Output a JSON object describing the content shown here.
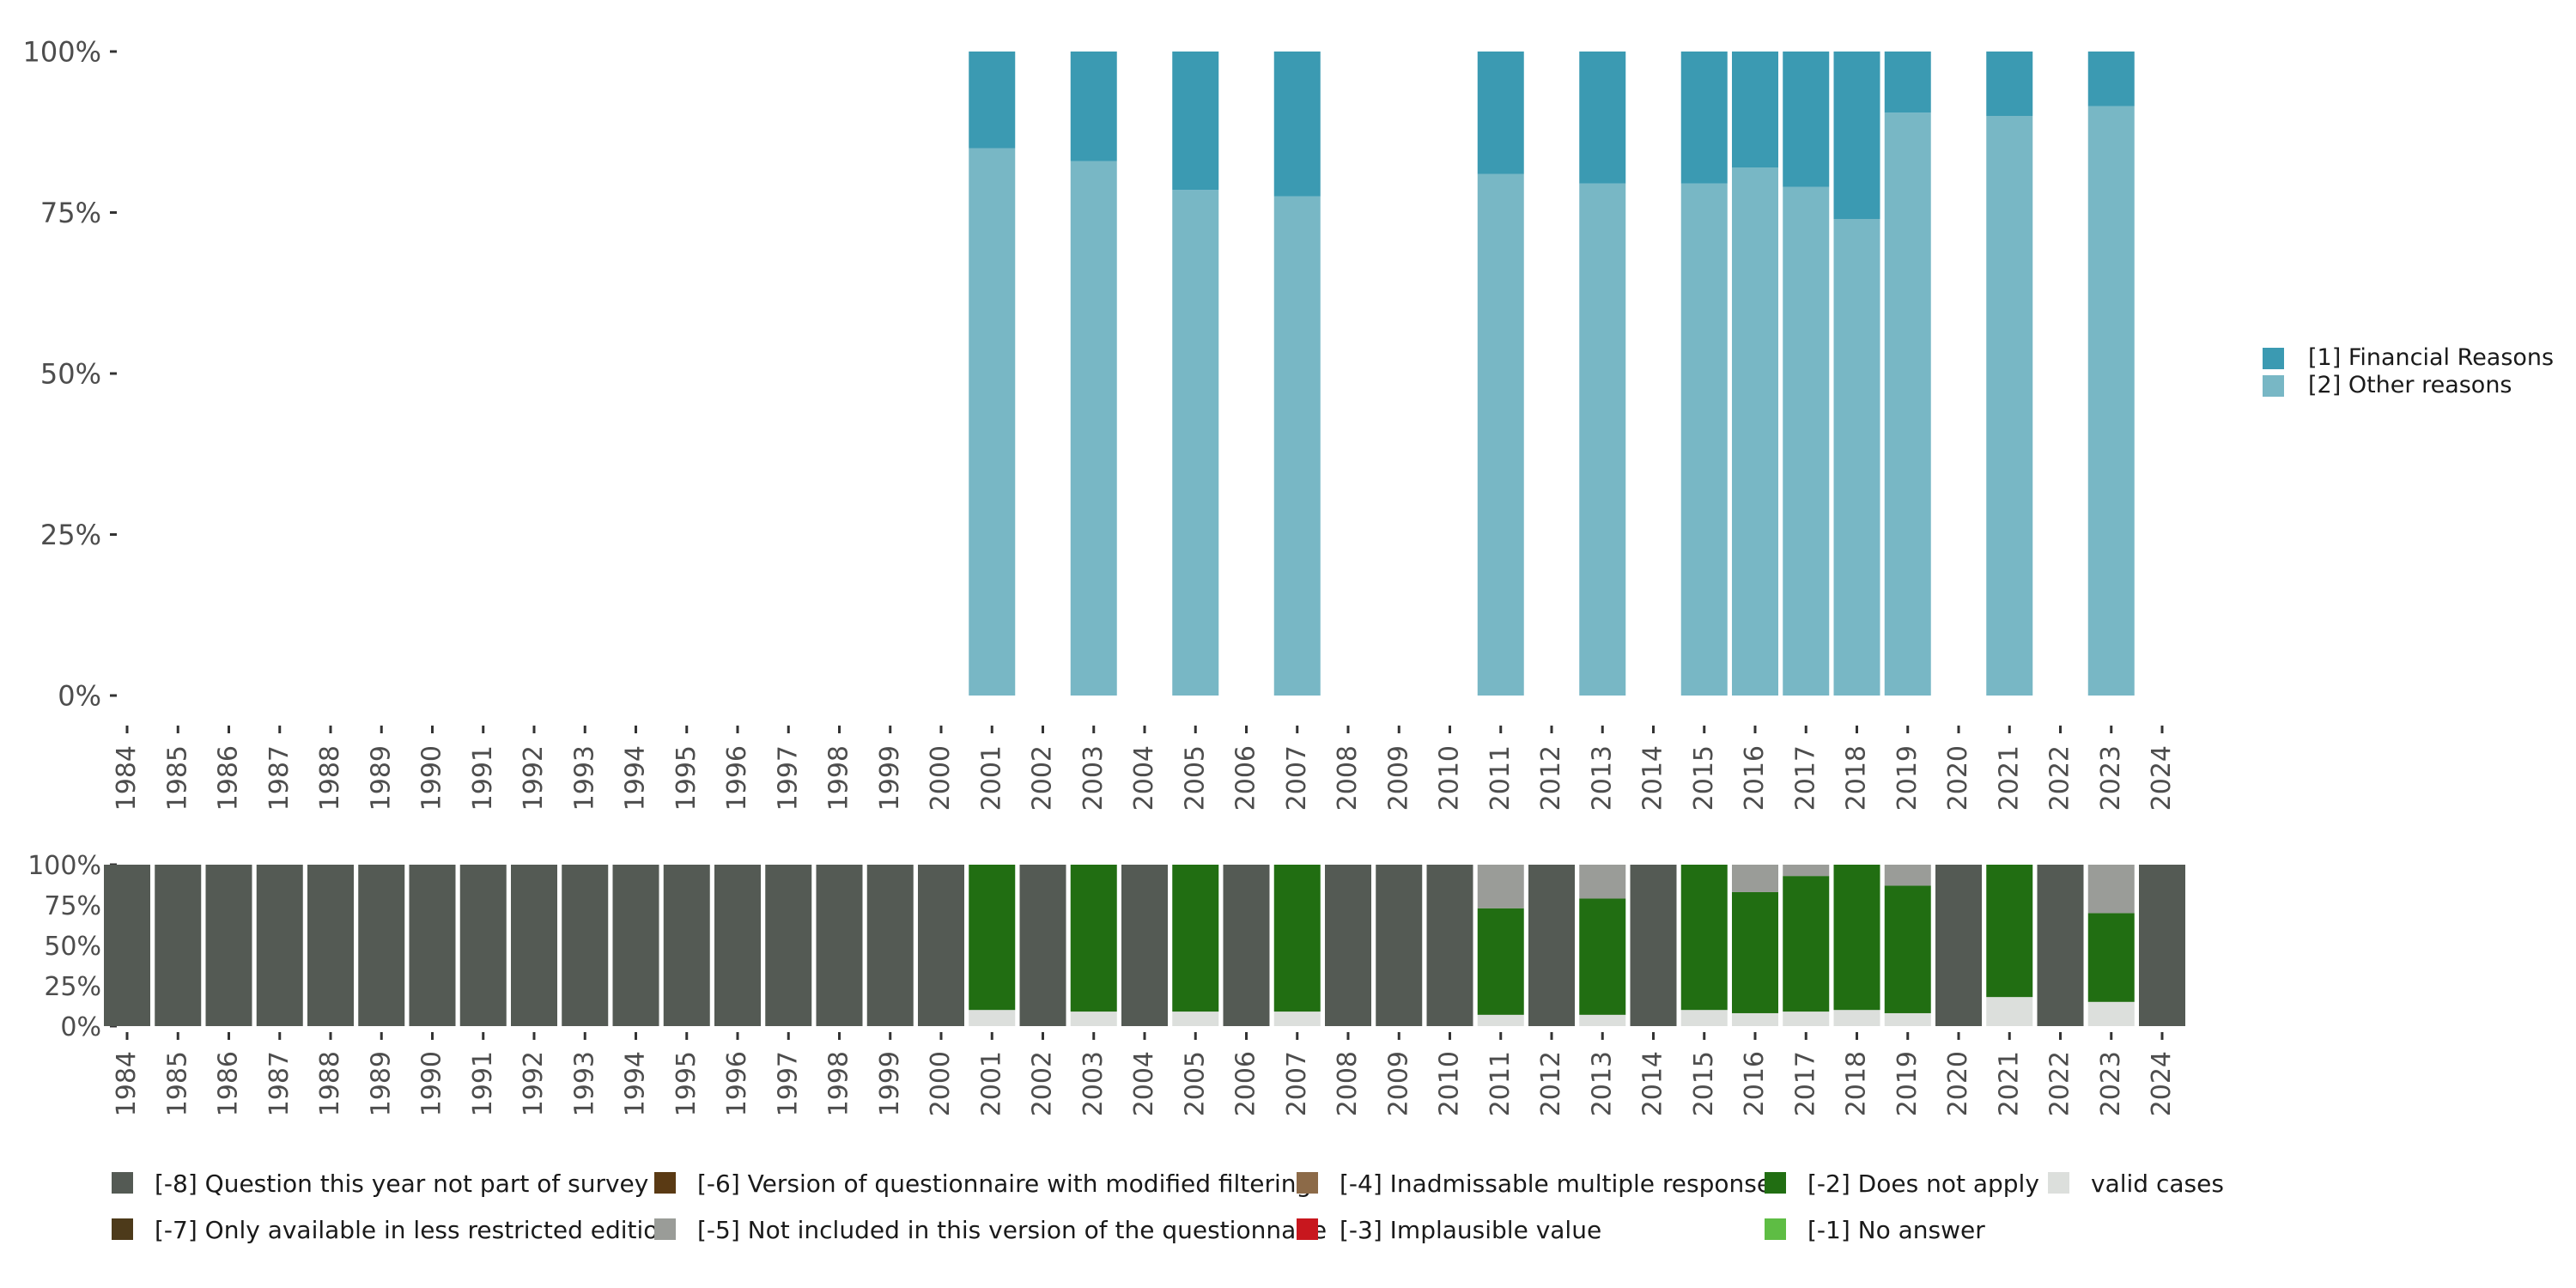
{
  "chart_data": [
    {
      "type": "bar",
      "stacked": true,
      "title": "",
      "xlabel": "",
      "ylabel": "",
      "ylim": [
        0,
        100
      ],
      "y_ticks": [
        "0%",
        "25%",
        "50%",
        "75%",
        "100%"
      ],
      "categories": [
        "1984",
        "1985",
        "1986",
        "1987",
        "1988",
        "1989",
        "1990",
        "1991",
        "1992",
        "1993",
        "1994",
        "1995",
        "1996",
        "1997",
        "1998",
        "1999",
        "2000",
        "2001",
        "2002",
        "2003",
        "2004",
        "2005",
        "2006",
        "2007",
        "2008",
        "2009",
        "2010",
        "2011",
        "2012",
        "2013",
        "2014",
        "2015",
        "2016",
        "2017",
        "2018",
        "2019",
        "2020",
        "2021",
        "2022",
        "2023",
        "2024"
      ],
      "legend_position": "right",
      "series": [
        {
          "name": "[2] Other reasons",
          "color": "#78b7c5",
          "values": [
            null,
            null,
            null,
            null,
            null,
            null,
            null,
            null,
            null,
            null,
            null,
            null,
            null,
            null,
            null,
            null,
            null,
            85,
            null,
            83,
            null,
            78.5,
            null,
            77.5,
            null,
            null,
            null,
            81,
            null,
            79.5,
            null,
            79.5,
            82,
            79,
            74,
            90.5,
            null,
            90,
            null,
            91.5,
            null
          ]
        },
        {
          "name": "[1] Financial Reasons",
          "color": "#3b9ab2",
          "values": [
            null,
            null,
            null,
            null,
            null,
            null,
            null,
            null,
            null,
            null,
            null,
            null,
            null,
            null,
            null,
            null,
            null,
            15,
            null,
            17,
            null,
            21.5,
            null,
            22.5,
            null,
            null,
            null,
            19,
            null,
            20.5,
            null,
            20.5,
            18,
            21,
            26,
            9.5,
            null,
            10,
            null,
            8.5,
            null
          ]
        }
      ]
    },
    {
      "type": "bar",
      "stacked": true,
      "title": "",
      "xlabel": "",
      "ylabel": "",
      "ylim": [
        0,
        100
      ],
      "y_ticks": [
        "0%",
        "25%",
        "50%",
        "75%",
        "100%"
      ],
      "categories": [
        "1984",
        "1985",
        "1986",
        "1987",
        "1988",
        "1989",
        "1990",
        "1991",
        "1992",
        "1993",
        "1994",
        "1995",
        "1996",
        "1997",
        "1998",
        "1999",
        "2000",
        "2001",
        "2002",
        "2003",
        "2004",
        "2005",
        "2006",
        "2007",
        "2008",
        "2009",
        "2010",
        "2011",
        "2012",
        "2013",
        "2014",
        "2015",
        "2016",
        "2017",
        "2018",
        "2019",
        "2020",
        "2021",
        "2022",
        "2023",
        "2024"
      ],
      "legend_position": "bottom",
      "series": [
        {
          "name": "valid cases",
          "color": "#dcdfdc",
          "values": [
            0,
            0,
            0,
            0,
            0,
            0,
            0,
            0,
            0,
            0,
            0,
            0,
            0,
            0,
            0,
            0,
            0,
            10,
            0,
            9,
            0,
            9,
            0,
            9,
            0,
            0,
            0,
            7,
            0,
            7,
            0,
            10,
            8,
            9,
            10,
            8,
            0,
            18,
            0,
            15,
            0
          ]
        },
        {
          "name": "[-2] Does not apply",
          "color": "#216e12",
          "values": [
            0,
            0,
            0,
            0,
            0,
            0,
            0,
            0,
            0,
            0,
            0,
            0,
            0,
            0,
            0,
            0,
            0,
            90,
            0,
            91,
            0,
            91,
            0,
            91,
            0,
            0,
            0,
            66,
            0,
            72,
            0,
            90,
            75,
            84,
            90,
            79,
            0,
            82,
            0,
            55,
            0
          ]
        },
        {
          "name": "[-5] Not included in this version of the questionnaire",
          "color": "#9a9c98",
          "values": [
            0,
            0,
            0,
            0,
            0,
            0,
            0,
            0,
            0,
            0,
            0,
            0,
            0,
            0,
            0,
            0,
            0,
            0,
            0,
            0,
            0,
            0,
            0,
            0,
            0,
            0,
            0,
            27,
            0,
            21,
            0,
            0,
            17,
            7,
            0,
            13,
            0,
            0,
            0,
            30,
            0
          ]
        },
        {
          "name": "[-8] Question this year not part of survey",
          "color": "#545a54",
          "values": [
            100,
            100,
            100,
            100,
            100,
            100,
            100,
            100,
            100,
            100,
            100,
            100,
            100,
            100,
            100,
            100,
            100,
            0,
            100,
            0,
            100,
            0,
            100,
            0,
            100,
            100,
            100,
            0,
            100,
            0,
            100,
            0,
            0,
            0,
            0,
            0,
            100,
            0,
            100,
            0,
            100
          ]
        }
      ],
      "legend_entries": [
        {
          "name": "[-8] Question this year not part of survey",
          "color": "#545a54"
        },
        {
          "name": "[-7] Only available in less restricted edition",
          "color": "#4d3a1a"
        },
        {
          "name": "[-6] Version of questionnaire with modified filtering",
          "color": "#5a3a14"
        },
        {
          "name": "[-5] Not included in this version of the questionnaire",
          "color": "#9a9c98"
        },
        {
          "name": "[-4] Inadmissable multiple response",
          "color": "#8c6a48"
        },
        {
          "name": "[-3] Implausible value",
          "color": "#c8171e"
        },
        {
          "name": "[-2] Does not apply",
          "color": "#216e12"
        },
        {
          "name": "[-1] No answer",
          "color": "#5ebd44"
        },
        {
          "name": "valid cases",
          "color": "#dcdfdc"
        }
      ]
    }
  ]
}
